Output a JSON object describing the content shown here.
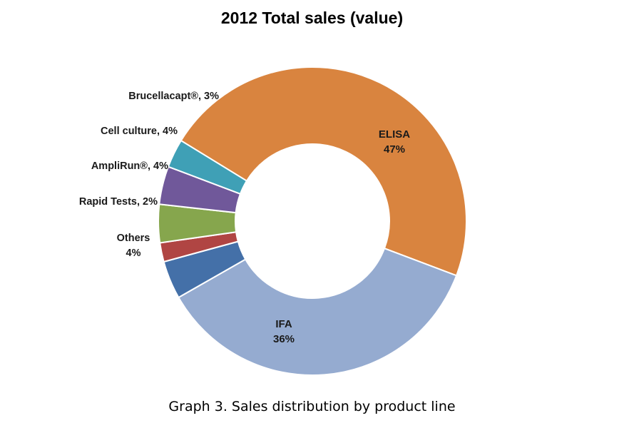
{
  "chart_data": {
    "type": "pie",
    "variant": "donut",
    "title": "2012 Total sales (value)",
    "caption": "Graph 3. Sales distribution by product line",
    "slices": [
      {
        "name": "ELISA",
        "value": 47,
        "display": "47%",
        "color": "#d9843f"
      },
      {
        "name": "IFA",
        "value": 36,
        "display": "36%",
        "color": "#95abd0"
      },
      {
        "name": "Others",
        "value": 4,
        "display": "4%",
        "color": "#4470a8"
      },
      {
        "name": "Rapid Tests",
        "value": 2,
        "display": "2%",
        "color": "#b04543"
      },
      {
        "name": "AmpliRun®",
        "value": 4,
        "display": "4%",
        "color": "#86a64d"
      },
      {
        "name": "Cell culture",
        "value": 4,
        "display": "4%",
        "color": "#70589a"
      },
      {
        "name": "Brucellacapt®",
        "value": 3,
        "display": "3%",
        "color": "#3fa0b6"
      }
    ],
    "labels": [
      {
        "slice": "ELISA",
        "lines": [
          "ELISA",
          "47%"
        ]
      },
      {
        "slice": "IFA",
        "lines": [
          "IFA",
          "36%"
        ]
      },
      {
        "slice": "Others",
        "lines": [
          "Others",
          "4%"
        ]
      },
      {
        "slice": "Rapid Tests",
        "lines": [
          "Rapid Tests, 2%"
        ]
      },
      {
        "slice": "AmpliRun®",
        "lines": [
          "AmpliRun®, 4%"
        ]
      },
      {
        "slice": "Cell culture",
        "lines": [
          "Cell culture, 4%"
        ]
      },
      {
        "slice": "Brucellacapt®",
        "lines": [
          "Brucellacapt®, 3%"
        ]
      }
    ],
    "legend": "none"
  }
}
